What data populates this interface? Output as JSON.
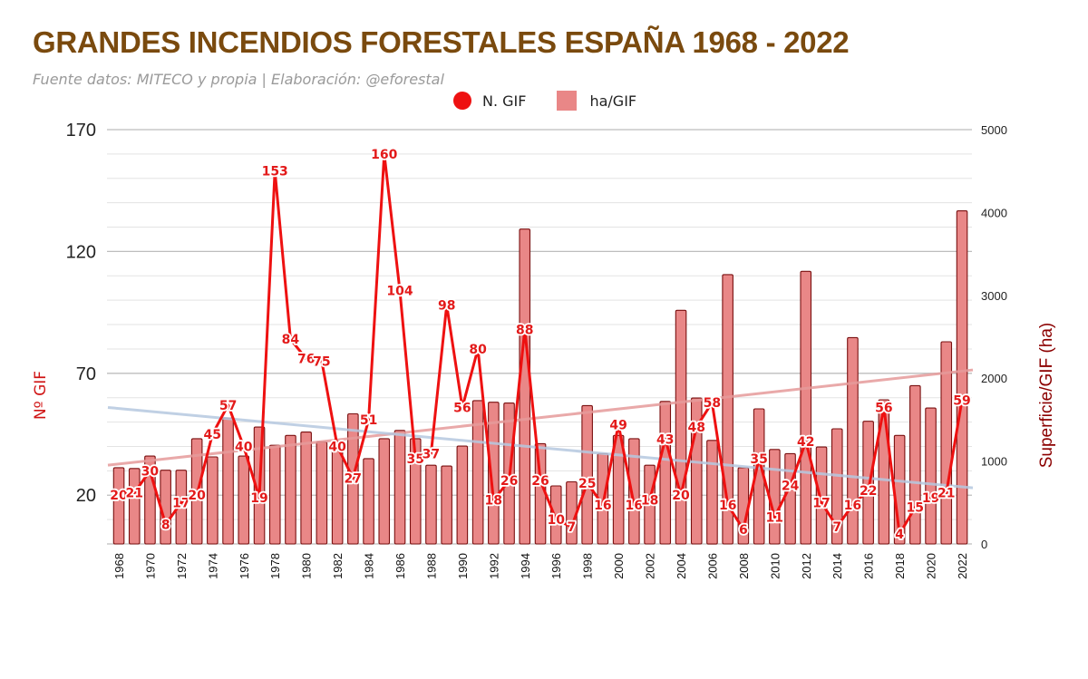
{
  "title": "GRANDES INCENDIOS FORESTALES ESPAÑA 1968 - 2022",
  "subtitle": "Fuente datos: MITECO y propia | Elaboración: @eforestal",
  "colors": {
    "title": "#7a4a0e",
    "line": "#ee1111",
    "bar_fill": "#e98787",
    "bar_stroke": "#7a1010",
    "trend_bars": "#e59a9a",
    "trend_line": "#b5c8df"
  },
  "chart_data": {
    "type": "bar+line",
    "x": [
      1968,
      1969,
      1970,
      1971,
      1972,
      1973,
      1974,
      1975,
      1976,
      1977,
      1978,
      1979,
      1980,
      1981,
      1982,
      1983,
      1984,
      1985,
      1986,
      1987,
      1988,
      1989,
      1990,
      1991,
      1992,
      1993,
      1994,
      1995,
      1996,
      1997,
      1998,
      1999,
      2000,
      2001,
      2002,
      2003,
      2004,
      2005,
      2006,
      2007,
      2008,
      2009,
      2010,
      2011,
      2012,
      2013,
      2014,
      2015,
      2016,
      2017,
      2018,
      2019,
      2020,
      2021,
      2022
    ],
    "x_tick_labels": [
      "1968",
      "1970",
      "1972",
      "1974",
      "1976",
      "1978",
      "1980",
      "1982",
      "1984",
      "1986",
      "1988",
      "1990",
      "1992",
      "1994",
      "1996",
      "1998",
      "2000",
      "2002",
      "2004",
      "2006",
      "2008",
      "2010",
      "2012",
      "2014",
      "2016",
      "2018",
      "2020",
      "2022"
    ],
    "series": [
      {
        "name": "N. GIF",
        "type": "line",
        "axis": "left",
        "values": [
          20,
          21,
          30,
          8,
          17,
          20,
          45,
          57,
          40,
          19,
          153,
          84,
          76,
          75,
          40,
          27,
          51,
          160,
          104,
          35,
          37,
          98,
          56,
          80,
          18,
          26,
          88,
          26,
          10,
          7,
          25,
          16,
          49,
          16,
          18,
          43,
          20,
          48,
          58,
          16,
          6,
          35,
          11,
          24,
          42,
          17,
          7,
          16,
          22,
          56,
          4,
          15,
          19,
          21,
          59
        ]
      },
      {
        "name": "ha/GIF",
        "type": "bar",
        "axis": "right",
        "values": [
          920,
          910,
          1060,
          890,
          890,
          1270,
          1050,
          1520,
          1060,
          1410,
          1190,
          1310,
          1350,
          1230,
          1240,
          1570,
          1030,
          1270,
          1370,
          1270,
          950,
          940,
          1180,
          1730,
          1710,
          1700,
          3800,
          1210,
          700,
          750,
          1670,
          1090,
          1310,
          1270,
          950,
          1720,
          2820,
          1760,
          1250,
          3250,
          920,
          1630,
          1140,
          1090,
          3290,
          1170,
          1390,
          2490,
          1480,
          1740,
          1310,
          1910,
          1640,
          2440,
          4020
        ]
      }
    ],
    "trends": [
      {
        "series": "ha/GIF",
        "axis": "right",
        "from": [
          1968,
          950
        ],
        "to": [
          2022,
          2100
        ]
      },
      {
        "series": "N. GIF",
        "axis": "left",
        "from": [
          1968,
          56
        ],
        "to": [
          2022,
          23
        ]
      }
    ],
    "y_left": {
      "label": "Nº GIF",
      "ticks": [
        20,
        70,
        120,
        170
      ],
      "ylim": [
        0,
        170
      ]
    },
    "y_right": {
      "label": "Superficie/GIF (ha)",
      "ticks": [
        0,
        1000,
        2000,
        3000,
        4000,
        5000
      ],
      "ylim": [
        0,
        5000
      ]
    },
    "legend": {
      "position": "top-center",
      "items": [
        "N. GIF",
        "ha/GIF"
      ]
    },
    "grid": true
  }
}
